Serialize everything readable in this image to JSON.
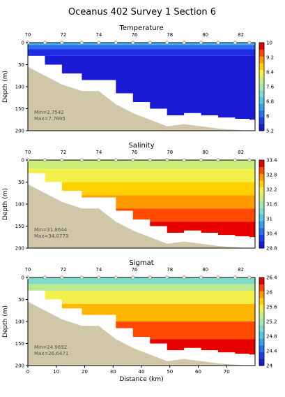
{
  "title": "Oceanus 402 Survey 1 Section 6",
  "colors": {
    "seafloor": "#cfc7a8",
    "station_marker": "#f1ead0",
    "frame": "#000000"
  },
  "chart_data": [
    {
      "type": "heatmap",
      "title": "Temperature",
      "ylabel": "Depth (m)",
      "xlabel": "",
      "top_axis_ticks": [
        "70",
        "72",
        "74",
        "76",
        "78",
        "80",
        "82"
      ],
      "x_ticks": [],
      "y_ticks": [
        "0",
        "50",
        "100",
        "150",
        "200"
      ],
      "ylim": [
        0,
        200
      ],
      "xlim": [
        0,
        80
      ],
      "stats": [
        "Min=2.7542",
        "Max=7.7695"
      ],
      "colorbar": {
        "ticks": [
          "10",
          "9.2",
          "8.4",
          "7.6",
          "6.8",
          "6",
          "5.2"
        ],
        "range": [
          5.2,
          10
        ],
        "colors": [
          "#1b1bd6",
          "#1e3ff0",
          "#2b6ff2",
          "#3aa0ee",
          "#58c6e8",
          "#7fdbd0",
          "#a6e8b0",
          "#cbee7a",
          "#f2f04a",
          "#ffd200",
          "#ff9a00",
          "#ff4a00",
          "#e60000"
        ]
      },
      "stations_km": [
        0,
        6,
        12,
        19,
        25,
        31,
        37,
        43,
        49,
        55,
        61,
        67,
        73,
        78
      ],
      "bottom_depth_m": [
        55,
        75,
        95,
        110,
        110,
        140,
        160,
        175,
        190,
        185,
        190,
        195,
        198,
        200
      ],
      "layers": [
        {
          "depth_m": 0,
          "value": 6.6
        },
        {
          "depth_m": 5,
          "value": 6.0
        },
        {
          "depth_m": 15,
          "value": 5.4
        },
        {
          "depth_m": 30,
          "value": 5.2
        }
      ]
    },
    {
      "type": "heatmap",
      "title": "Salinity",
      "ylabel": "Depth (m)",
      "xlabel": "",
      "top_axis_ticks": [
        "70",
        "72",
        "74",
        "76",
        "78",
        "80",
        "82"
      ],
      "x_ticks": [],
      "y_ticks": [
        "0",
        "50",
        "100",
        "150",
        "200"
      ],
      "ylim": [
        0,
        200
      ],
      "xlim": [
        0,
        80
      ],
      "stats": [
        "Min=31.8644",
        "Max=34.0773"
      ],
      "colorbar": {
        "ticks": [
          "33.4",
          "32.8",
          "32.2",
          "31.6",
          "31",
          "30.4",
          "29.8"
        ],
        "range": [
          29.8,
          33.4
        ],
        "colors": [
          "#1b1bd6",
          "#1e3ff0",
          "#2b6ff2",
          "#3aa0ee",
          "#58c6e8",
          "#7fdbd0",
          "#a6e8b0",
          "#cbee7a",
          "#f2f04a",
          "#ffd200",
          "#ff9a00",
          "#ff4a00",
          "#e60000"
        ]
      },
      "stations_km": [
        0,
        6,
        12,
        19,
        25,
        31,
        37,
        43,
        49,
        55,
        61,
        67,
        73,
        78
      ],
      "bottom_depth_m": [
        55,
        75,
        95,
        110,
        110,
        140,
        160,
        175,
        190,
        185,
        190,
        195,
        198,
        200
      ],
      "layers": [
        {
          "depth_m": 0,
          "value": 31.9
        },
        {
          "depth_m": 20,
          "value": 32.2
        },
        {
          "depth_m": 50,
          "value": 32.5
        },
        {
          "depth_m": 80,
          "value": 32.8
        },
        {
          "depth_m": 110,
          "value": 33.1
        },
        {
          "depth_m": 140,
          "value": 33.4
        }
      ]
    },
    {
      "type": "heatmap",
      "title": "Sigmat",
      "ylabel": "Depth (m)",
      "xlabel": "Distance (km)",
      "top_axis_ticks": [
        "70",
        "72",
        "74",
        "76",
        "78",
        "80",
        "82"
      ],
      "x_ticks": [
        "0",
        "10",
        "20",
        "30",
        "40",
        "50",
        "60",
        "70"
      ],
      "y_ticks": [
        "0",
        "50",
        "100",
        "150",
        "200"
      ],
      "ylim": [
        0,
        200
      ],
      "xlim": [
        0,
        80
      ],
      "stats": [
        "Min=24.9692",
        "Max=26.6471"
      ],
      "colorbar": {
        "ticks": [
          "26.4",
          "26",
          "25.6",
          "25.2",
          "24.8",
          "24.4",
          "24"
        ],
        "range": [
          24,
          26.4
        ],
        "colors": [
          "#1b1bd6",
          "#1e3ff0",
          "#2b6ff2",
          "#3aa0ee",
          "#58c6e8",
          "#7fdbd0",
          "#a6e8b0",
          "#cbee7a",
          "#f2f04a",
          "#ffd200",
          "#ff9a00",
          "#ff4a00",
          "#e60000"
        ]
      },
      "stations_km": [
        0,
        6,
        12,
        19,
        25,
        31,
        37,
        43,
        49,
        55,
        61,
        67,
        73,
        78
      ],
      "bottom_depth_m": [
        55,
        75,
        95,
        110,
        110,
        140,
        160,
        175,
        190,
        185,
        190,
        195,
        198,
        200
      ],
      "layers": [
        {
          "depth_m": 0,
          "value": 25.0
        },
        {
          "depth_m": 15,
          "value": 25.3
        },
        {
          "depth_m": 30,
          "value": 25.6
        },
        {
          "depth_m": 60,
          "value": 25.9
        },
        {
          "depth_m": 100,
          "value": 26.2
        },
        {
          "depth_m": 140,
          "value": 26.4
        }
      ]
    }
  ]
}
